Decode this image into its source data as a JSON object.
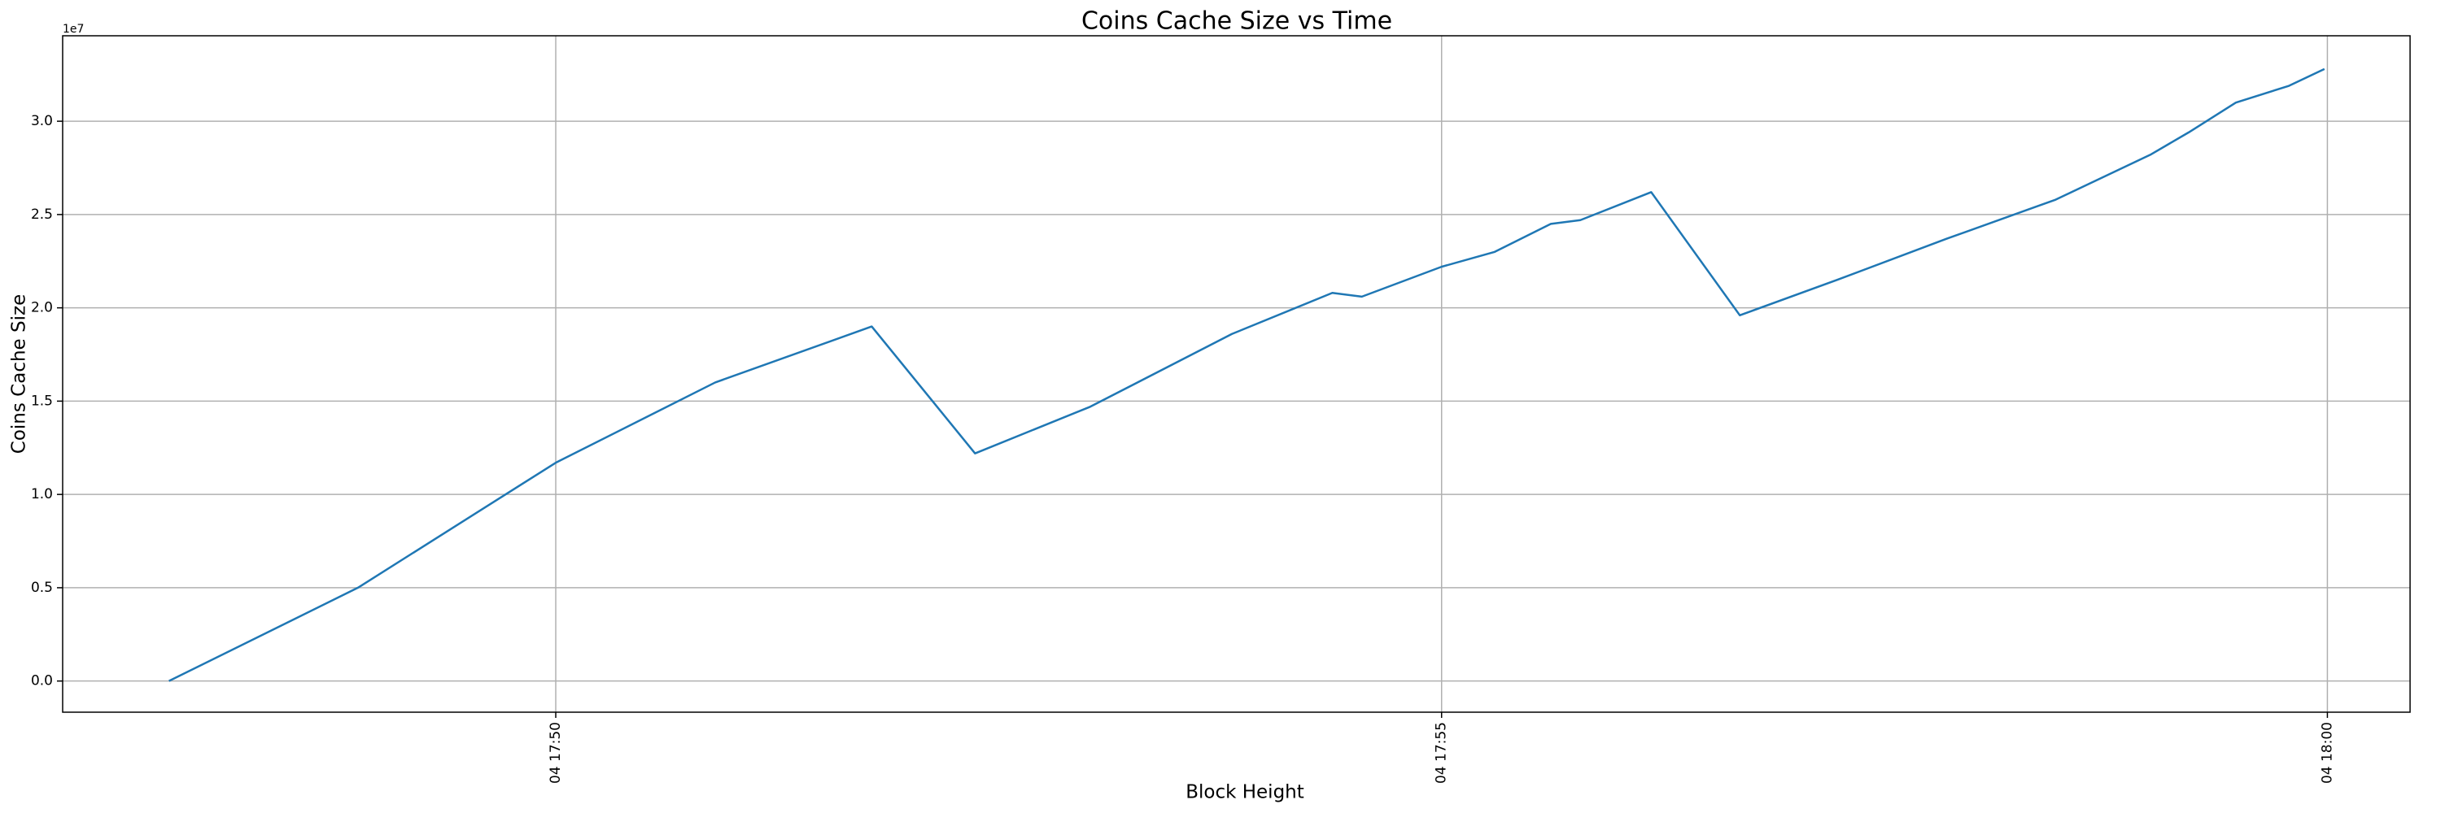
{
  "chart_data": {
    "type": "line",
    "title": "Coins Cache Size vs Time",
    "xlabel": "Block Height",
    "ylabel": "Coins Cache Size",
    "y_offset_label": "1e7",
    "x": [
      "04 17:47:49",
      "04 17:48:53",
      "04 17:50:00",
      "04 17:50:54",
      "04 17:51:47",
      "04 17:52:22",
      "04 17:53:01",
      "04 17:53:49",
      "04 17:54:23",
      "04 17:54:33",
      "04 17:55:00",
      "04 17:55:18",
      "04 17:55:37",
      "04 17:55:47",
      "04 17:56:11",
      "04 17:56:41",
      "04 17:57:14",
      "04 17:57:51",
      "04 17:58:28",
      "04 17:59:00",
      "04 17:59:13",
      "04 17:59:29",
      "04 17:59:47",
      "04 17:59:59"
    ],
    "values": [
      0,
      0.5,
      1.17,
      1.6,
      1.9,
      1.22,
      1.47,
      1.86,
      2.08,
      2.06,
      2.22,
      2.3,
      2.45,
      2.47,
      2.62,
      1.96,
      2.15,
      2.37,
      2.58,
      2.82,
      2.94,
      3.1,
      3.19,
      3.28
    ],
    "color": "#1f77b4",
    "xlim": [
      "04 17:47:13",
      "04 18:00:28"
    ],
    "xticks": [
      "04 17:50",
      "04 17:55",
      "04 18:00"
    ],
    "ylim": [
      -0.167,
      3.458
    ],
    "yticks": [
      {
        "value": 0,
        "label": "0.0"
      },
      0.5,
      {
        "value": 1,
        "label": "1.0"
      },
      1.5,
      {
        "value": 2,
        "label": "2.0"
      },
      2.5,
      {
        "value": 3,
        "label": "3.0"
      }
    ],
    "grid": true
  }
}
